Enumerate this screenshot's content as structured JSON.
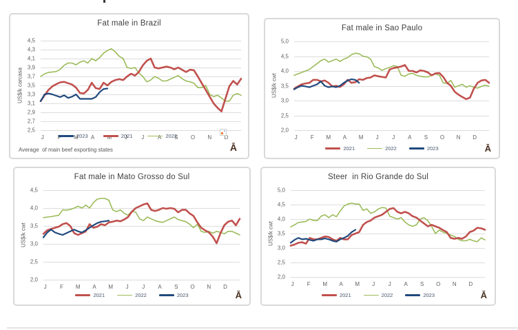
{
  "branding": {
    "logo_glyph": "Ā"
  },
  "colors": {
    "series_2021": "#C0504D",
    "series_2022": "#9BBB59",
    "series_2023": "#1F497D",
    "grid": "#DCDCDC",
    "panel_border": "#D9D9D9",
    "title_text": "#3F3F3F",
    "axis_text": "#5F5F5F",
    "legend_text": "#44546A",
    "note_text": "#595959",
    "logo": "#4A2F1F",
    "divider": "#E4E4E4"
  },
  "chart_data": [
    {
      "type": "line",
      "title": "Fat male in Brazil",
      "ylabel": "US$/k carcasa",
      "ylim": [
        2.5,
        4.5
      ],
      "yticks": [
        "4,5",
        "4,3",
        "4,1",
        "3,9",
        "3,7",
        "3,5",
        "3,3",
        "3,1",
        "2,9",
        "2,7",
        "2,5"
      ],
      "x_labels": [
        "J",
        "F",
        "M",
        "A",
        "M",
        "J",
        "J",
        "A",
        "S",
        "O",
        "N",
        "D"
      ],
      "weeks": 52,
      "grid": true,
      "legend_position": "inside-bottom-left",
      "legend_order": [
        "2023",
        "2021",
        "2022"
      ],
      "note": "Average  of main beef exporting states",
      "series": [
        {
          "name": "2022",
          "color_key": "series_2022",
          "stroke_width": 1.6,
          "values": [
            3.7,
            3.76,
            3.79,
            3.8,
            3.81,
            3.86,
            3.95,
            4.0,
            4.0,
            3.96,
            4.02,
            4.05,
            4.0,
            4.1,
            4.05,
            4.12,
            4.22,
            4.28,
            4.32,
            4.25,
            4.15,
            4.1,
            3.9,
            3.88,
            3.9,
            3.78,
            3.7,
            3.58,
            3.62,
            3.7,
            3.66,
            3.6,
            3.6,
            3.64,
            3.68,
            3.72,
            3.65,
            3.6,
            3.58,
            3.55,
            3.45,
            3.45,
            3.5,
            3.3,
            3.25,
            3.28,
            3.22,
            3.15,
            3.15,
            3.28,
            3.32,
            3.28
          ]
        },
        {
          "name": "2021",
          "color_key": "series_2021",
          "stroke_width": 2.6,
          "values": [
            3.15,
            3.28,
            3.4,
            3.48,
            3.53,
            3.57,
            3.58,
            3.55,
            3.52,
            3.45,
            3.33,
            3.32,
            3.4,
            3.56,
            3.44,
            3.42,
            3.56,
            3.5,
            3.58,
            3.62,
            3.64,
            3.62,
            3.7,
            3.76,
            3.72,
            3.8,
            3.95,
            4.05,
            4.1,
            3.9,
            3.88,
            3.9,
            3.92,
            3.9,
            3.86,
            3.9,
            3.85,
            3.8,
            3.85,
            3.84,
            3.7,
            3.55,
            3.4,
            3.25,
            3.1,
            3.0,
            2.92,
            3.2,
            3.48,
            3.6,
            3.52,
            3.65
          ]
        },
        {
          "name": "2023",
          "color_key": "series_2023",
          "stroke_width": 2.2,
          "values": [
            3.15,
            3.3,
            3.32,
            3.3,
            3.27,
            3.24,
            3.28,
            3.22,
            3.25,
            3.3,
            3.2,
            3.2,
            3.2,
            3.2,
            3.24,
            3.35,
            3.42,
            3.43
          ]
        }
      ]
    },
    {
      "type": "line",
      "title": "Fat male in Sao Paulo",
      "ylabel": "US$/k cwt",
      "ylim": [
        2.0,
        5.0
      ],
      "yticks": [
        "5,0",
        "4,5",
        "4,0",
        "3,5",
        "3,0",
        "2,5",
        "2,0"
      ],
      "x_labels": [
        "J",
        "F",
        "M",
        "A",
        "M",
        "J",
        "J",
        "A",
        "S",
        "O",
        "N",
        "D"
      ],
      "weeks": 52,
      "grid": true,
      "legend_position": "bottom",
      "legend_order": [
        "2021",
        "2022",
        "2023"
      ],
      "note": "",
      "series": [
        {
          "name": "2022",
          "color_key": "series_2022",
          "stroke_width": 1.6,
          "values": [
            3.85,
            3.9,
            3.95,
            4.0,
            4.05,
            4.15,
            4.25,
            4.35,
            4.4,
            4.3,
            4.35,
            4.4,
            4.32,
            4.4,
            4.45,
            4.55,
            4.6,
            4.58,
            4.5,
            4.48,
            4.4,
            4.15,
            4.1,
            4.02,
            4.08,
            4.12,
            4.18,
            4.15,
            3.85,
            3.82,
            3.9,
            3.92,
            3.85,
            3.82,
            3.8,
            3.8,
            3.85,
            3.9,
            3.85,
            3.6,
            3.58,
            3.68,
            3.45,
            3.5,
            3.55,
            3.45,
            3.5,
            3.45,
            3.42,
            3.48,
            3.52,
            3.48
          ]
        },
        {
          "name": "2021",
          "color_key": "series_2021",
          "stroke_width": 2.6,
          "values": [
            3.4,
            3.48,
            3.55,
            3.58,
            3.6,
            3.7,
            3.7,
            3.65,
            3.68,
            3.6,
            3.48,
            3.5,
            3.46,
            3.55,
            3.7,
            3.6,
            3.62,
            3.72,
            3.7,
            3.76,
            3.78,
            3.85,
            3.82,
            3.8,
            3.78,
            4.05,
            4.1,
            4.12,
            4.15,
            4.2,
            4.0,
            4.0,
            3.95,
            4.02,
            4.0,
            3.95,
            3.85,
            3.92,
            3.93,
            3.8,
            3.6,
            3.5,
            3.3,
            3.2,
            3.12,
            3.05,
            3.1,
            3.4,
            3.6,
            3.68,
            3.7,
            3.6
          ]
        },
        {
          "name": "2023",
          "color_key": "series_2023",
          "stroke_width": 2.2,
          "values": [
            3.38,
            3.45,
            3.5,
            3.48,
            3.45,
            3.5,
            3.55,
            3.65,
            3.5,
            3.45,
            3.48,
            3.45,
            3.5,
            3.6,
            3.68,
            3.72,
            3.7,
            3.6
          ]
        }
      ]
    },
    {
      "type": "line",
      "title": "Fat male in Mato Grosso do Sul",
      "ylabel": "US$/k cwt",
      "ylim": [
        2.0,
        4.5
      ],
      "yticks": [
        "4,5",
        "4,0",
        "3,5",
        "3,0",
        "2,5",
        "2,0"
      ],
      "x_labels": [
        "J",
        "F",
        "M",
        "A",
        "M",
        "J",
        "J",
        "A",
        "S",
        "O",
        "N",
        "D"
      ],
      "weeks": 52,
      "grid": true,
      "legend_position": "bottom",
      "legend_order": [
        "2021",
        "2022",
        "2023"
      ],
      "note": "",
      "series": [
        {
          "name": "2022",
          "color_key": "series_2022",
          "stroke_width": 1.6,
          "values": [
            3.73,
            3.75,
            3.76,
            3.78,
            3.8,
            3.95,
            3.94,
            3.96,
            4.0,
            4.05,
            4.0,
            4.08,
            4.0,
            4.15,
            4.25,
            4.27,
            4.27,
            4.22,
            3.95,
            3.9,
            3.95,
            3.85,
            3.8,
            3.92,
            3.88,
            3.7,
            3.65,
            3.75,
            3.7,
            3.65,
            3.62,
            3.6,
            3.65,
            3.7,
            3.75,
            3.68,
            3.65,
            3.62,
            3.55,
            3.45,
            3.55,
            3.35,
            3.32,
            3.35,
            3.3,
            3.35,
            3.32,
            3.28,
            3.35,
            3.35,
            3.3,
            3.25
          ]
        },
        {
          "name": "2021",
          "color_key": "series_2021",
          "stroke_width": 2.6,
          "values": [
            3.28,
            3.38,
            3.42,
            3.45,
            3.48,
            3.55,
            3.58,
            3.5,
            3.3,
            3.25,
            3.3,
            3.35,
            3.55,
            3.45,
            3.48,
            3.55,
            3.52,
            3.6,
            3.62,
            3.65,
            3.63,
            3.68,
            3.75,
            3.9,
            4.0,
            4.05,
            4.1,
            4.13,
            3.95,
            3.92,
            3.95,
            4.0,
            3.98,
            4.0,
            3.98,
            3.88,
            3.95,
            3.95,
            3.85,
            3.78,
            3.6,
            3.45,
            3.38,
            3.32,
            3.2,
            3.02,
            3.3,
            3.52,
            3.62,
            3.65,
            3.52,
            3.7
          ]
        },
        {
          "name": "2023",
          "color_key": "series_2023",
          "stroke_width": 2.2,
          "values": [
            3.18,
            3.32,
            3.4,
            3.32,
            3.28,
            3.25,
            3.3,
            3.35,
            3.4,
            3.35,
            3.32,
            3.38,
            3.45,
            3.52,
            3.58,
            3.62,
            3.63,
            3.65
          ]
        }
      ]
    },
    {
      "type": "line",
      "title": "Steer  in Rio Grande do Sul",
      "ylabel": "US$/k cwt",
      "ylim": [
        2.0,
        5.0
      ],
      "yticks": [
        "5,0",
        "4,5",
        "4,0",
        "3,5",
        "3,0",
        "2,5",
        "2,0"
      ],
      "x_labels": [
        "J",
        "F",
        "M",
        "A",
        "M",
        "J",
        "J",
        "A",
        "S",
        "O",
        "N",
        "D"
      ],
      "weeks": 52,
      "grid": true,
      "legend_position": "bottom",
      "legend_order": [
        "2021",
        "2022",
        "2023"
      ],
      "note": "",
      "series": [
        {
          "name": "2022",
          "color_key": "series_2022",
          "stroke_width": 1.6,
          "values": [
            3.73,
            3.8,
            3.88,
            3.9,
            3.92,
            4.0,
            3.95,
            3.95,
            4.1,
            4.15,
            4.05,
            4.15,
            4.08,
            4.28,
            4.45,
            4.52,
            4.55,
            4.52,
            4.52,
            4.3,
            4.35,
            4.2,
            4.25,
            4.35,
            4.4,
            4.38,
            4.1,
            4.05,
            4.0,
            4.05,
            3.9,
            3.8,
            3.75,
            3.8,
            4.0,
            4.05,
            3.95,
            3.75,
            3.5,
            3.62,
            3.55,
            3.5,
            3.45,
            3.4,
            3.3,
            3.25,
            3.25,
            3.3,
            3.25,
            3.22,
            3.35,
            3.28
          ]
        },
        {
          "name": "2021",
          "color_key": "series_2021",
          "stroke_width": 2.6,
          "values": [
            3.08,
            3.12,
            3.18,
            3.2,
            3.15,
            3.35,
            3.3,
            3.3,
            3.35,
            3.4,
            3.38,
            3.3,
            3.25,
            3.35,
            3.3,
            3.3,
            3.45,
            3.5,
            3.55,
            3.8,
            3.9,
            3.95,
            4.05,
            4.1,
            4.15,
            4.25,
            4.35,
            4.38,
            4.25,
            4.2,
            4.25,
            4.2,
            4.1,
            4.05,
            3.95,
            3.85,
            3.75,
            3.8,
            3.75,
            3.7,
            3.62,
            3.55,
            3.35,
            3.32,
            3.35,
            3.32,
            3.4,
            3.55,
            3.6,
            3.7,
            3.68,
            3.63
          ]
        },
        {
          "name": "2023",
          "color_key": "series_2023",
          "stroke_width": 2.2,
          "values": [
            3.18,
            3.28,
            3.35,
            3.3,
            3.32,
            3.28,
            3.25,
            3.3,
            3.3,
            3.33,
            3.3,
            3.25,
            3.22,
            3.3,
            3.35,
            3.42,
            3.55,
            3.63
          ]
        }
      ]
    }
  ]
}
